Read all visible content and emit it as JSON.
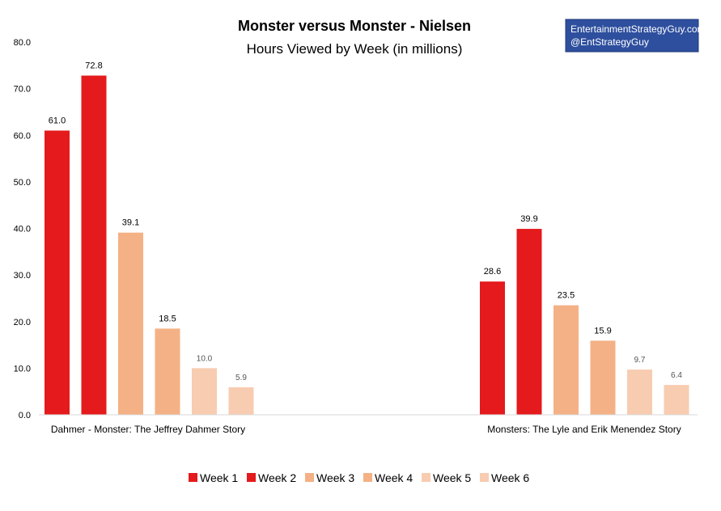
{
  "brand": {
    "line1": "EntertainmentStrategyGuy.com",
    "line2": "@EntStrategyGuy",
    "bg_color": "#2E4F9E"
  },
  "chart_data": {
    "type": "bar",
    "title": "Monster versus Monster - Nielsen",
    "subtitle": "Hours Viewed by Week (in millions)",
    "categories": [
      "Dahmer - Monster: The Jeffrey Dahmer Story",
      "Monsters: The Lyle and Erik Menendez Story"
    ],
    "series": [
      {
        "name": "Week 1",
        "color": "#E41A1C",
        "values": [
          61.0,
          28.6
        ],
        "labels": [
          "61.0",
          "28.6"
        ]
      },
      {
        "name": "Week 2",
        "color": "#E41A1C",
        "values": [
          72.8,
          39.9
        ],
        "labels": [
          "72.8",
          "39.9"
        ]
      },
      {
        "name": "Week 3",
        "color": "#F4B185",
        "values": [
          39.1,
          23.5
        ],
        "labels": [
          "39.1",
          "23.5"
        ]
      },
      {
        "name": "Week 4",
        "color": "#F4B185",
        "values": [
          18.5,
          15.9
        ],
        "labels": [
          "18.5",
          "15.9"
        ]
      },
      {
        "name": "Week 5",
        "color": "#F8CCB0",
        "values": [
          10.0,
          9.7
        ],
        "labels": [
          "10.0",
          "9.7"
        ]
      },
      {
        "name": "Week 6",
        "color": "#F8CCB0",
        "values": [
          5.9,
          6.4
        ],
        "labels": [
          "5.9",
          "6.4"
        ]
      }
    ],
    "ylim": [
      0,
      80
    ],
    "yticks": [
      "0.0",
      "10.0",
      "20.0",
      "30.0",
      "40.0",
      "50.0",
      "60.0",
      "70.0",
      "80.0"
    ],
    "grid": false,
    "legend": "bottom"
  }
}
